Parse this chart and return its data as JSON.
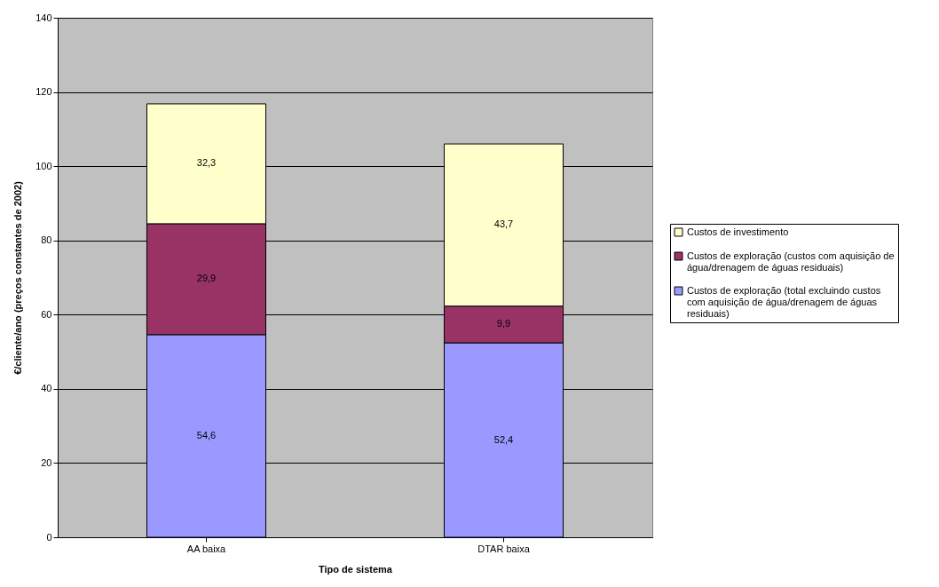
{
  "chart_data": {
    "type": "bar",
    "stacked": true,
    "xlabel": "Tipo de sistema",
    "ylabel": "€/cliente/ano (preços constantes de 2002)",
    "categories": [
      "AA baixa",
      "DTAR baixa"
    ],
    "series": [
      {
        "name": "Custos de exploração (total excluindo custos com aquisição de água/drenagem de águas residuais)",
        "color": "#9999ff",
        "values": [
          54.6,
          52.4
        ],
        "value_labels": [
          "54,6",
          "52,4"
        ]
      },
      {
        "name": "Custos de exploração (custos com aquisição de água/drenagem de águas residuais)",
        "color": "#993366",
        "values": [
          29.9,
          9.9
        ],
        "value_labels": [
          "29,9",
          "9,9"
        ]
      },
      {
        "name": "Custos de investimento",
        "color": "#ffffcc",
        "values": [
          32.3,
          43.7
        ],
        "value_labels": [
          "32,3",
          "43,7"
        ]
      }
    ],
    "ylim": [
      0,
      140
    ],
    "yticks": [
      0,
      20,
      40,
      60,
      80,
      100,
      120,
      140
    ],
    "grid": "y",
    "legend": "right"
  }
}
